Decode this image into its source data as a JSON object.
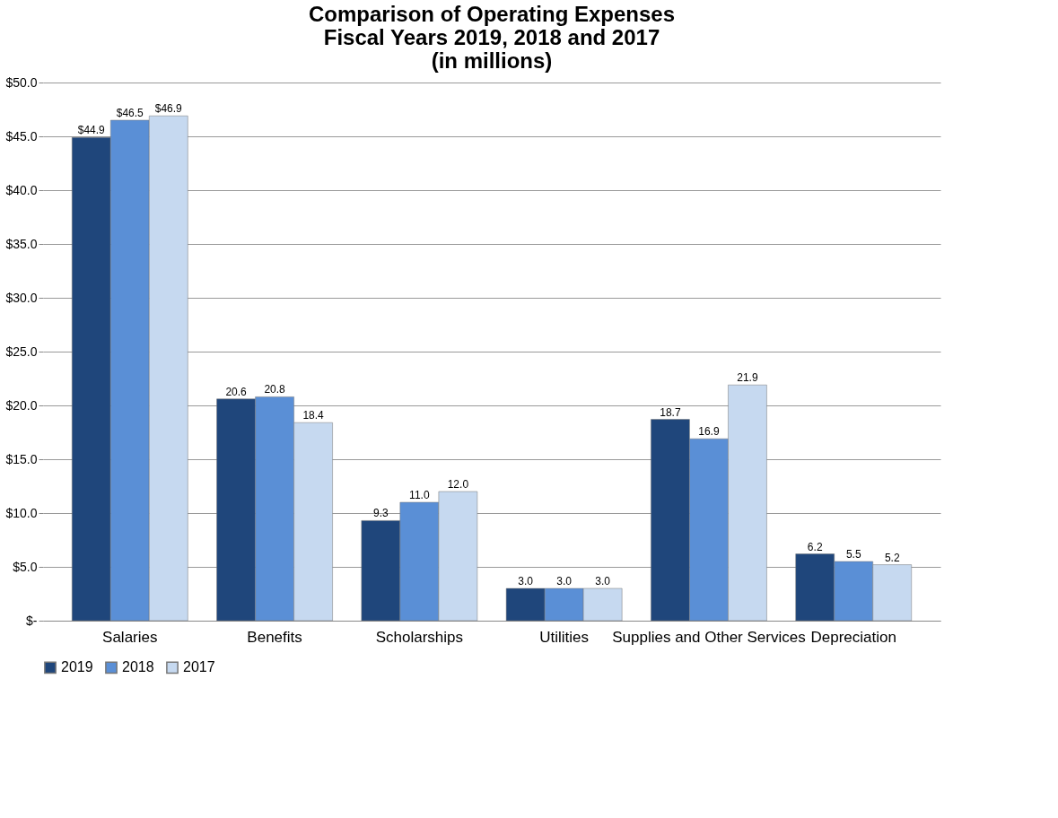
{
  "chart_data": {
    "type": "bar",
    "title": "Comparison of Operating Expenses\nFiscal Years 2019, 2018 and 2017\n(in millions)",
    "categories": [
      "Salaries",
      "Benefits",
      "Scholarships",
      "Utilities",
      "Supplies and Other Services",
      "Depreciation"
    ],
    "series": [
      {
        "name": "2019",
        "color": "#1f467b",
        "values": [
          44.9,
          20.6,
          9.3,
          3.0,
          18.7,
          6.2
        ],
        "value_labels": [
          "$44.9",
          "20.6",
          "9.3",
          "3.0",
          "18.7",
          "6.2"
        ]
      },
      {
        "name": "2018",
        "color": "#5a8fd6",
        "values": [
          46.5,
          20.8,
          11.0,
          3.0,
          16.9,
          5.5
        ],
        "value_labels": [
          "$46.5",
          "20.8",
          "11.0",
          "3.0",
          "16.9",
          "5.5"
        ]
      },
      {
        "name": "2017",
        "color": "#c6d9f0",
        "values": [
          46.9,
          18.4,
          12.0,
          3.0,
          21.9,
          5.2
        ],
        "value_labels": [
          "$46.9",
          "18.4",
          "12.0",
          "3.0",
          "21.9",
          "5.2"
        ]
      }
    ],
    "ylim": [
      0,
      50
    ],
    "yticks": [
      {
        "value": 0,
        "label": "$-"
      },
      {
        "value": 5,
        "label": "$5.0"
      },
      {
        "value": 10,
        "label": "$10.0"
      },
      {
        "value": 15,
        "label": "$15.0"
      },
      {
        "value": 20,
        "label": "$20.0"
      },
      {
        "value": 25,
        "label": "$25.0"
      },
      {
        "value": 30,
        "label": "$30.0"
      },
      {
        "value": 35,
        "label": "$35.0"
      },
      {
        "value": 40,
        "label": "$40.0"
      },
      {
        "value": 45,
        "label": "$45.0"
      },
      {
        "value": 50,
        "label": "$50.0"
      }
    ],
    "grid": "y",
    "legend": "bottom"
  }
}
